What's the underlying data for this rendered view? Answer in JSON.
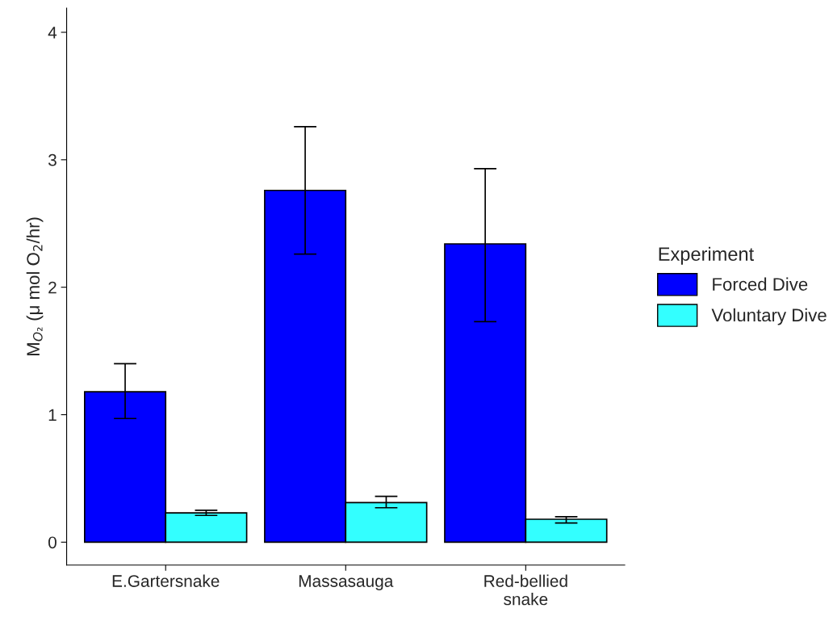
{
  "chart_data": {
    "type": "bar",
    "ylabel": "M$_{O₂}$ (μ mol O$_{2}$/hr)",
    "legend_title": "Experiment",
    "categories": [
      "E.Gartersnake",
      "Massasauga",
      "Red-bellied\nsnake"
    ],
    "series": [
      {
        "name": "Forced Dive",
        "color": "#0000ff",
        "values": [
          1.18,
          2.76,
          2.34
        ],
        "errors": [
          [
            0.97,
            1.4
          ],
          [
            2.26,
            3.26
          ],
          [
            1.73,
            2.93
          ]
        ]
      },
      {
        "name": "Voluntary Dive",
        "color": "#33ffff",
        "values": [
          0.23,
          0.31,
          0.18
        ],
        "errors": [
          [
            0.21,
            0.25
          ],
          [
            0.27,
            0.36
          ],
          [
            0.15,
            0.2
          ]
        ]
      }
    ],
    "ylim": [
      -0.18,
      4.19
    ],
    "yticks": [
      0,
      1,
      2,
      3,
      4
    ],
    "grid": false,
    "legend": "right"
  }
}
